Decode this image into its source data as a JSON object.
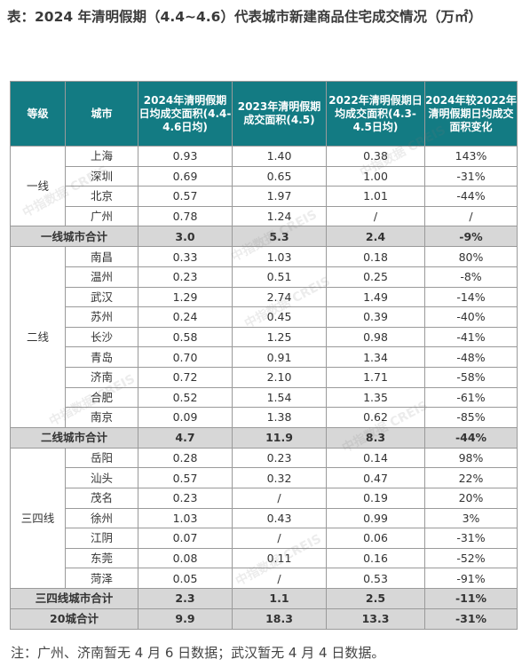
{
  "title": "表：2024 年清明假期（4.4~4.6）代表城市新建商品住宅成交情况（万㎡）",
  "headers": [
    "等级",
    "城市",
    "2024年清明假期日均成交面积(4.4-4.6日均)",
    "2023年清明假期成交面积(4.5)",
    "2022年清明假期日均成交面积(4.3-4.5日均)",
    "2024年较2022年清明假期日均成交面积变化"
  ],
  "groups": [
    {
      "tier": "一线",
      "rows": [
        [
          "上海",
          "0.93",
          "1.40",
          "0.38",
          "143%"
        ],
        [
          "深圳",
          "0.69",
          "0.65",
          "1.00",
          "-31%"
        ],
        [
          "北京",
          "0.57",
          "1.97",
          "1.01",
          "-44%"
        ],
        [
          "广州",
          "0.78",
          "1.24",
          "/",
          "/"
        ]
      ],
      "subtotal": [
        "一线城市合计",
        "3.0",
        "5.3",
        "2.4",
        "-9%"
      ]
    },
    {
      "tier": "二线",
      "rows": [
        [
          "南昌",
          "0.33",
          "1.03",
          "0.18",
          "80%"
        ],
        [
          "温州",
          "0.23",
          "0.51",
          "0.25",
          "-8%"
        ],
        [
          "武汉",
          "1.29",
          "2.74",
          "1.49",
          "-14%"
        ],
        [
          "苏州",
          "0.24",
          "0.45",
          "0.39",
          "-40%"
        ],
        [
          "长沙",
          "0.58",
          "1.25",
          "0.98",
          "-41%"
        ],
        [
          "青岛",
          "0.70",
          "0.91",
          "1.34",
          "-48%"
        ],
        [
          "济南",
          "0.72",
          "2.10",
          "1.71",
          "-58%"
        ],
        [
          "合肥",
          "0.52",
          "1.54",
          "1.35",
          "-61%"
        ],
        [
          "南京",
          "0.09",
          "1.38",
          "0.62",
          "-85%"
        ]
      ],
      "subtotal": [
        "二线城市合计",
        "4.7",
        "11.9",
        "8.3",
        "-44%"
      ]
    },
    {
      "tier": "三四线",
      "rows": [
        [
          "岳阳",
          "0.28",
          "0.23",
          "0.14",
          "98%"
        ],
        [
          "汕头",
          "0.57",
          "0.32",
          "0.47",
          "22%"
        ],
        [
          "茂名",
          "0.23",
          "/",
          "0.19",
          "20%"
        ],
        [
          "徐州",
          "1.03",
          "0.43",
          "0.99",
          "3%"
        ],
        [
          "江阴",
          "0.07",
          "/",
          "0.06",
          "-31%"
        ],
        [
          "东莞",
          "0.08",
          "0.11",
          "0.16",
          "-52%"
        ],
        [
          "菏泽",
          "0.05",
          "/",
          "0.53",
          "-91%"
        ]
      ],
      "subtotal": [
        "三四线城市合计",
        "2.3",
        "1.1",
        "2.5",
        "-11%"
      ]
    }
  ],
  "total": [
    "20城合计",
    "9.9",
    "18.3",
    "13.3",
    "-31%"
  ],
  "note": "注：广州、济南暂无 4 月 6 日数据；武汉暂无 4 月 4 日数据。",
  "watermark": "中指数据 CREIS",
  "colors": {
    "header_bg": "#137b83",
    "subtotal_bg": "#d7d7d7"
  }
}
